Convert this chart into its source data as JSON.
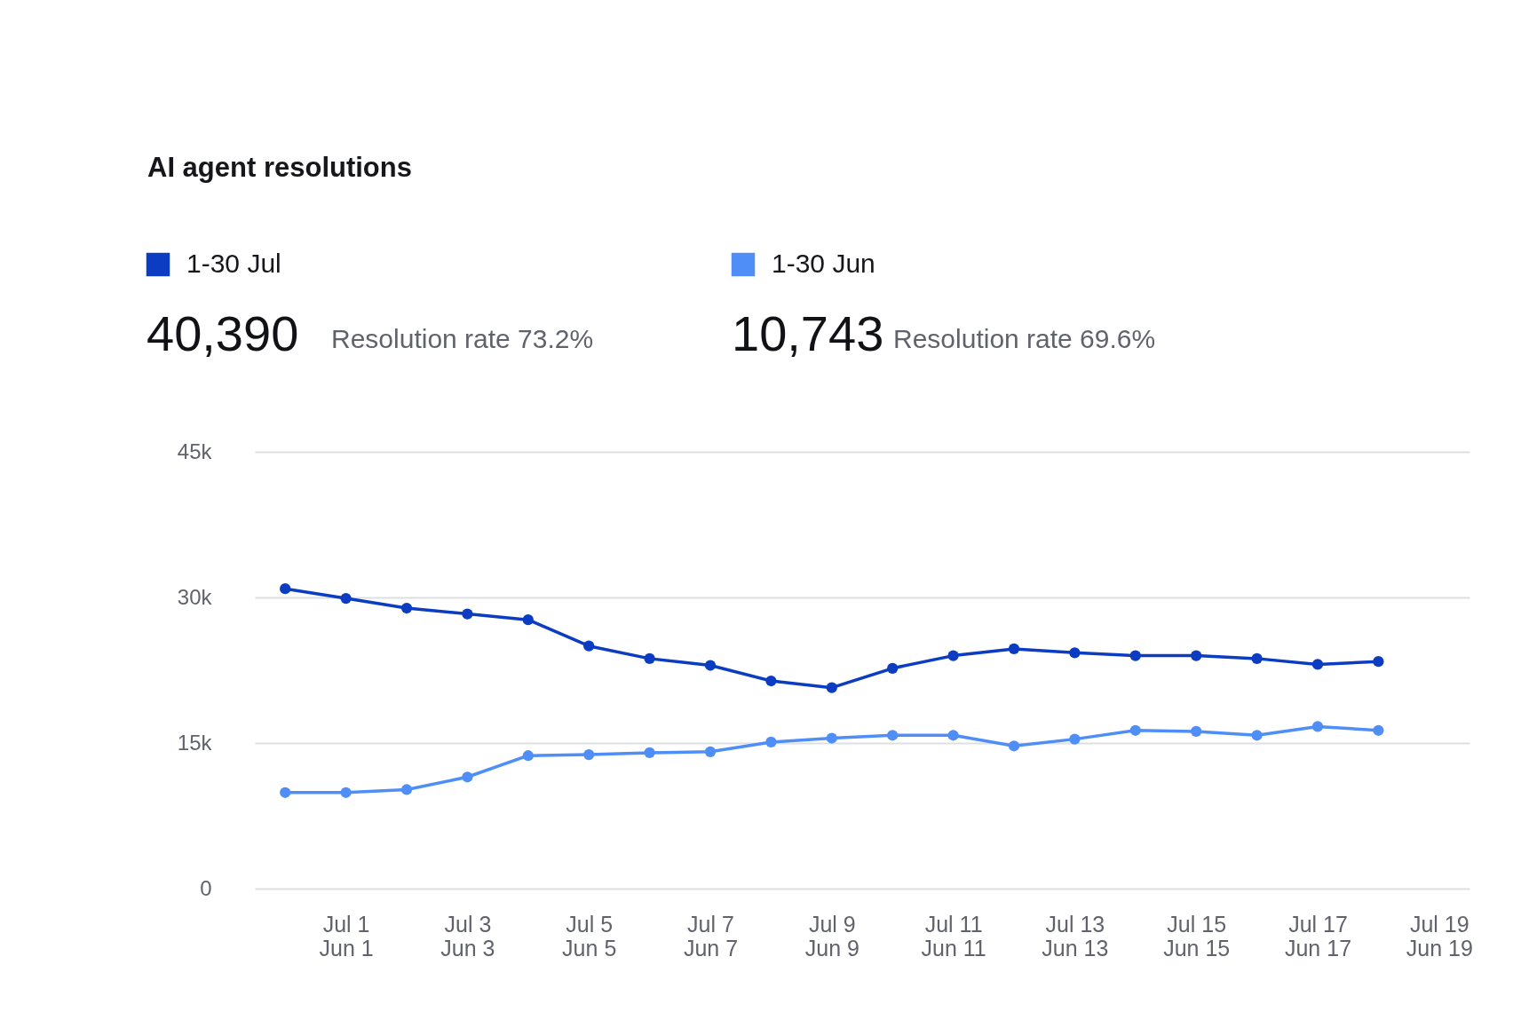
{
  "chart_data": {
    "type": "line",
    "title": "AI agent resolutions",
    "categories": [
      null,
      "Jul 1\nJun 1",
      null,
      "Jul 3\nJun 3",
      null,
      "Jul 5\nJun 5",
      null,
      "Jul 7\nJun 7",
      null,
      "Jul 9\nJun 9",
      null,
      "Jul 11\nJun 11",
      null,
      "Jul 13\nJun 13",
      null,
      "Jul 15\nJun 15",
      null,
      "Jul 17\nJun 17",
      null,
      "Jul 19\nJun 19"
    ],
    "series": [
      {
        "name": "1-30 Jul",
        "color": "#0b3cc1",
        "values": [
          30900,
          29900,
          28900,
          28300,
          27700,
          25000,
          23700,
          23000,
          21400,
          20700,
          22700,
          24000,
          24700,
          24300,
          24000,
          24000,
          23700,
          23100,
          23400,
          null
        ]
      },
      {
        "name": "1-30 Jun",
        "color": "#4f8ef7",
        "values": [
          9900,
          9900,
          10200,
          11500,
          13700,
          13800,
          14000,
          14100,
          15100,
          15500,
          15800,
          15800,
          14700,
          15400,
          16300,
          16200,
          15800,
          16700,
          16300,
          null
        ]
      }
    ],
    "annotations": [
      "40,390",
      "Resolution rate 73.2%",
      "10,743",
      "Resolution rate 69.6%"
    ],
    "ylim": [
      0,
      45000
    ],
    "yticks": [
      0,
      {
        "value": 15000,
        "label": "15k"
      },
      {
        "value": 30000,
        "label": "30k"
      },
      {
        "value": 45000,
        "label": "45k"
      }
    ],
    "grid": "y",
    "legend": "top left",
    "marker": "circle",
    "line_style": "solid"
  }
}
